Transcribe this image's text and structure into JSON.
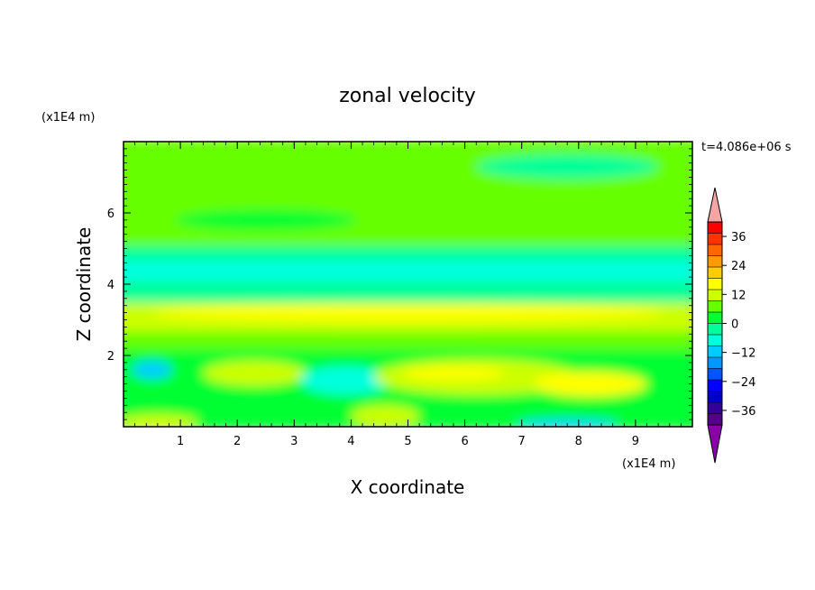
{
  "chart_data": {
    "type": "heatmap",
    "title": "zonal velocity",
    "xlabel": "X coordinate",
    "ylabel": "Z coordinate",
    "x_unit": "(x1E4 m)",
    "y_unit": "(x1E4 m)",
    "time_label": "t=4.086e+06 s",
    "xlim": [
      0,
      10
    ],
    "ylim": [
      0,
      8
    ],
    "x_ticks": [
      "1",
      "2",
      "3",
      "4",
      "5",
      "6",
      "7",
      "8",
      "9"
    ],
    "y_ticks": [
      "2",
      "4",
      "6"
    ],
    "colorbar": {
      "tick_labels": [
        "36",
        "24",
        "12",
        "0",
        "−12",
        "−24",
        "−36"
      ],
      "tick_values": [
        36,
        24,
        12,
        0,
        -12,
        -24,
        -36
      ],
      "levels": [
        42,
        36,
        30,
        24,
        18,
        12,
        6,
        0,
        -6,
        -12,
        -18,
        -24,
        -30,
        -36,
        -42
      ],
      "colors": [
        "#ff0000",
        "#ff3300",
        "#ff6600",
        "#ff9900",
        "#ffcc00",
        "#ffff00",
        "#ccff00",
        "#66ff00",
        "#00ff33",
        "#00ff99",
        "#00ffdd",
        "#00ccff",
        "#0099ff",
        "#0055ff",
        "#0000ff",
        "#0000cc",
        "#330099",
        "#550088"
      ],
      "over_color": "#f4a6a6",
      "under_color": "#8a00a8"
    },
    "bands": [
      {
        "z": [
          7.5,
          8.0
        ],
        "value": 2
      },
      {
        "z": [
          5.0,
          7.5
        ],
        "value": 2
      },
      {
        "z": [
          4.6,
          5.0
        ],
        "value": -6
      },
      {
        "z": [
          4.0,
          4.6
        ],
        "value": -14
      },
      {
        "z": [
          3.4,
          4.0
        ],
        "value": -8
      },
      {
        "z": [
          2.6,
          3.4
        ],
        "value": 8
      },
      {
        "z": [
          2.1,
          2.6
        ],
        "value": 3
      },
      {
        "z": [
          0.0,
          2.1
        ],
        "value": -4
      }
    ],
    "blobs": [
      {
        "x": 1.6,
        "z": 7.0,
        "rx": 1.4,
        "rz": 0.4,
        "value": 4
      },
      {
        "x": 7.8,
        "z": 7.3,
        "rx": 1.6,
        "rz": 0.35,
        "value": -6
      },
      {
        "x": 4.0,
        "z": 6.4,
        "rx": 2.2,
        "rz": 0.35,
        "value": 4
      },
      {
        "x": 7.0,
        "z": 6.0,
        "rx": 2.0,
        "rz": 0.4,
        "value": 4
      },
      {
        "x": 2.5,
        "z": 5.8,
        "rx": 1.6,
        "rz": 0.3,
        "value": -5
      },
      {
        "x": 5.0,
        "z": 3.2,
        "rx": 4.5,
        "rz": 0.25,
        "value": 13
      },
      {
        "x": 0.5,
        "z": 1.6,
        "rx": 0.35,
        "rz": 0.25,
        "value": -18
      },
      {
        "x": 2.3,
        "z": 1.5,
        "rx": 0.9,
        "rz": 0.35,
        "value": 10
      },
      {
        "x": 3.9,
        "z": 1.3,
        "rx": 0.8,
        "rz": 0.4,
        "value": -12
      },
      {
        "x": 6.2,
        "z": 1.4,
        "rx": 1.8,
        "rz": 0.5,
        "value": 12
      },
      {
        "x": 8.2,
        "z": 1.2,
        "rx": 1.0,
        "rz": 0.35,
        "value": 14
      },
      {
        "x": 5.8,
        "z": 1.5,
        "rx": 0.9,
        "rz": 0.2,
        "value": 16
      },
      {
        "x": 4.6,
        "z": 0.3,
        "rx": 0.6,
        "rz": 0.3,
        "value": 8
      },
      {
        "x": 7.8,
        "z": 0.1,
        "rx": 0.9,
        "rz": 0.12,
        "value": -20
      },
      {
        "x": 0.6,
        "z": 0.15,
        "rx": 0.7,
        "rz": 0.2,
        "value": 12
      }
    ],
    "grid": false
  }
}
